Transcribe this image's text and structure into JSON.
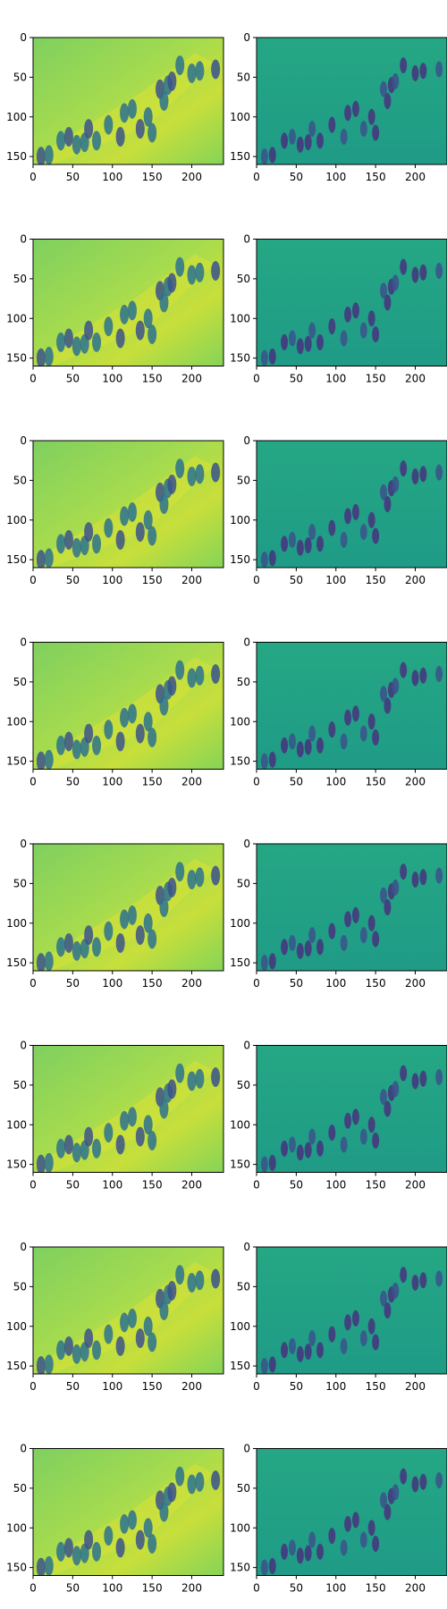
{
  "figure": {
    "colors": {
      "background": "#ffffff",
      "axis": "#000000",
      "left_panel_base": "#8ed65a",
      "right_panel_base": "#20a486",
      "colormap": [
        "#440154",
        "#3b528b",
        "#21918c",
        "#5ec962",
        "#fde725"
      ]
    }
  },
  "chart_data": {
    "type": "heatmap",
    "rows": 8,
    "columns": 2,
    "colormap": "viridis",
    "x_ticks": [
      "0",
      "50",
      "100",
      "150",
      "200"
    ],
    "y_ticks": [
      "0",
      "50",
      "100",
      "150"
    ],
    "xlim": [
      0,
      240
    ],
    "ylim": [
      160,
      0
    ],
    "y_inverted": true,
    "panels_per_row": [
      "left",
      "right"
    ]
  }
}
